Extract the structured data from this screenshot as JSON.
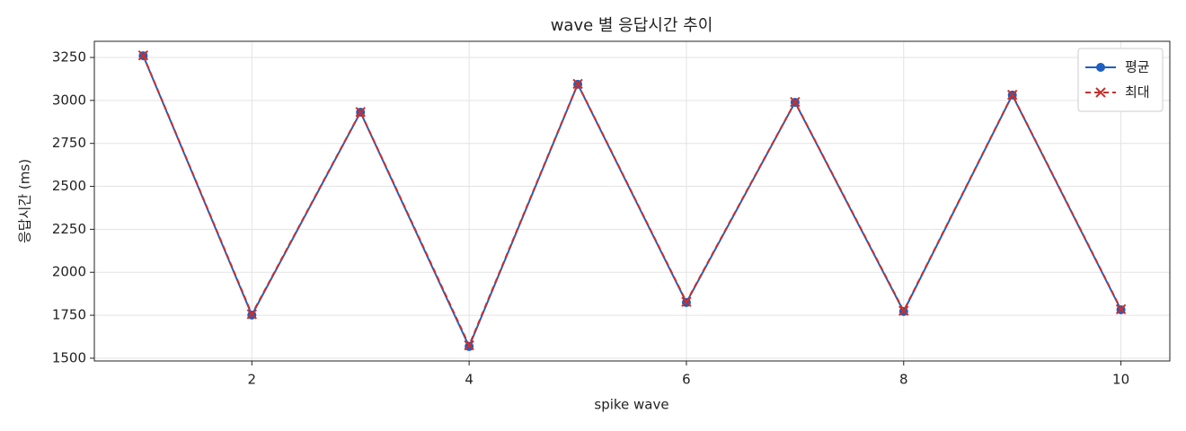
{
  "chart_data": {
    "type": "line",
    "title": "wave 별 응답시간 추이",
    "x_label": "spike wave",
    "y_label": "응답시간 (ms)",
    "x": [
      1,
      2,
      3,
      4,
      5,
      6,
      7,
      8,
      9,
      10
    ],
    "series": [
      {
        "name": "평균",
        "color": "#1f5fbf",
        "marker": "circle",
        "dashed": false,
        "values": [
          3260,
          1751,
          2931,
          1568,
          3094,
          1824,
          2989,
          1772,
          3031,
          1782
        ]
      },
      {
        "name": "최대",
        "color": "#c9302c",
        "marker": "x",
        "dashed": true,
        "values": [
          3262,
          1756,
          2933,
          1575,
          3096,
          1828,
          2991,
          1776,
          3033,
          1785
        ]
      }
    ],
    "xlim": [
      0.55,
      10.45
    ],
    "xticks": [
      2,
      4,
      6,
      8,
      10
    ],
    "ylim": [
      1484,
      3344
    ],
    "yticks": [
      1500,
      1750,
      2000,
      2250,
      2500,
      2750,
      3000,
      3250
    ],
    "grid": true,
    "legend": "upper right"
  }
}
